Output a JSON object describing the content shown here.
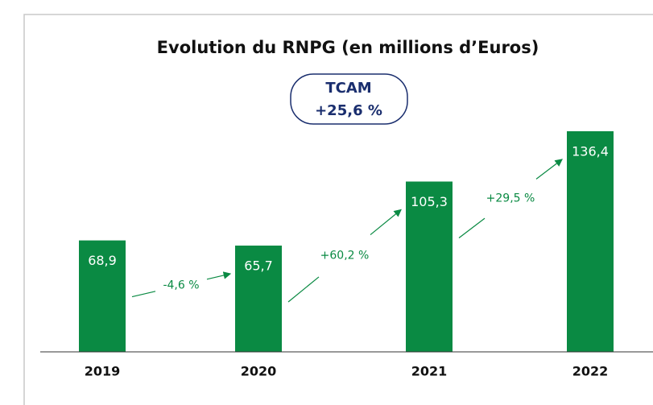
{
  "chart_data": {
    "type": "bar",
    "title": "Evolution du RNPG (en millions d’Euros)",
    "badge": [
      "TCAM",
      "+25,6 %"
    ],
    "categories": [
      "2019",
      "2020",
      "2021",
      "2022"
    ],
    "values": [
      68.9,
      65.7,
      105.3,
      136.4
    ],
    "value_labels": [
      "68,9",
      "65,7",
      "105,3",
      "136,4"
    ],
    "growth_labels": [
      "-4,6 %",
      "+60,2 %",
      "+29,5 %"
    ],
    "color": "#0a8a43"
  }
}
